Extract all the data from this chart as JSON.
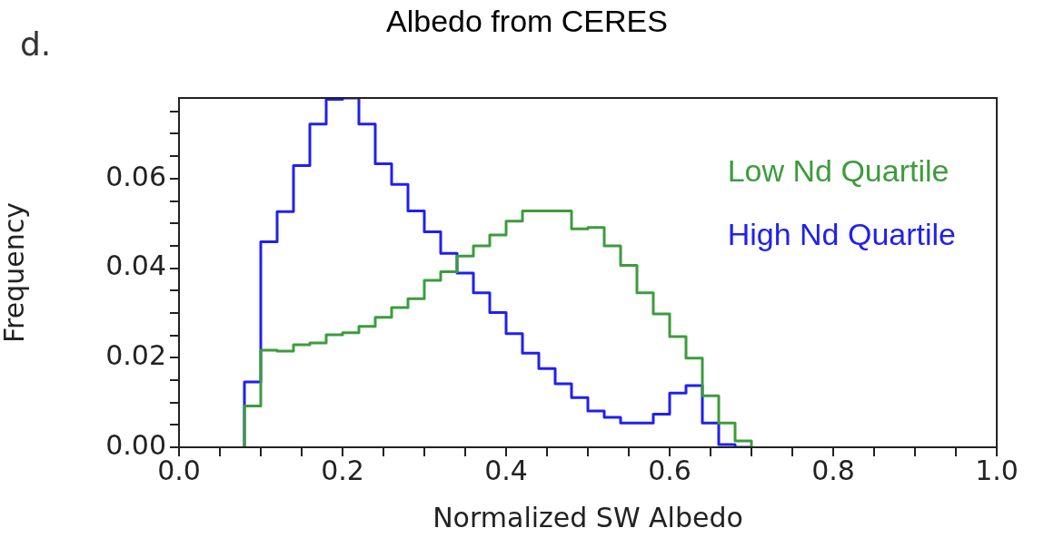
{
  "chart_data": {
    "type": "histogram",
    "title": "Albedo from CERES",
    "xlabel": "Normalized SW Albedo",
    "ylabel": "Frequency",
    "annotations": [
      "d."
    ],
    "bins": [
      0.08,
      0.1,
      0.12,
      0.14,
      0.16,
      0.18,
      0.2,
      0.22,
      0.24,
      0.26,
      0.28,
      0.3,
      0.32,
      0.34,
      0.36,
      0.38,
      0.4,
      0.42,
      0.44,
      0.46,
      0.48,
      0.5,
      0.52,
      0.54,
      0.56,
      0.58,
      0.6,
      0.62,
      0.64,
      0.66,
      0.68,
      0.7
    ],
    "series": [
      {
        "name": "Low Nd Quartile",
        "color": "#3c9c3c",
        "values": [
          0.0092,
          0.0217,
          0.0215,
          0.0229,
          0.0233,
          0.0251,
          0.0256,
          0.027,
          0.029,
          0.0312,
          0.0332,
          0.0373,
          0.0392,
          0.0427,
          0.045,
          0.0474,
          0.0505,
          0.0528,
          0.0528,
          0.0528,
          0.0488,
          0.0491,
          0.045,
          0.0406,
          0.0345,
          0.0298,
          0.0247,
          0.0199,
          0.0115,
          0.0054,
          0.0014
        ]
      },
      {
        "name": "High Nd Quartile",
        "color": "#2020f0",
        "values": [
          0.0146,
          0.0459,
          0.0526,
          0.0629,
          0.0722,
          0.0777,
          0.078,
          0.0722,
          0.0633,
          0.0587,
          0.0528,
          0.0481,
          0.0433,
          0.0389,
          0.0345,
          0.0301,
          0.0254,
          0.021,
          0.0176,
          0.0142,
          0.0111,
          0.0081,
          0.0067,
          0.0054,
          0.0054,
          0.0074,
          0.0121,
          0.0138,
          0.0054,
          0.0006,
          0
        ]
      }
    ],
    "xlim": [
      0,
      1
    ],
    "ylim": [
      0,
      0.078
    ],
    "xticks": [
      {
        "value": 0,
        "label": "0.0"
      },
      {
        "value": 0.05,
        "label": null
      },
      {
        "value": 0.1,
        "label": null
      },
      {
        "value": 0.15,
        "label": null
      },
      {
        "value": 0.2,
        "label": "0.2"
      },
      {
        "value": 0.25,
        "label": null
      },
      {
        "value": 0.3,
        "label": null
      },
      {
        "value": 0.35,
        "label": null
      },
      {
        "value": 0.4,
        "label": "0.4"
      },
      {
        "value": 0.45,
        "label": null
      },
      {
        "value": 0.5,
        "label": null
      },
      {
        "value": 0.55,
        "label": null
      },
      {
        "value": 0.6,
        "label": "0.6"
      },
      {
        "value": 0.65,
        "label": null
      },
      {
        "value": 0.7,
        "label": null
      },
      {
        "value": 0.75,
        "label": null
      },
      {
        "value": 0.8,
        "label": "0.8"
      },
      {
        "value": 0.85,
        "label": null
      },
      {
        "value": 0.9,
        "label": null
      },
      {
        "value": 0.95,
        "label": null
      },
      {
        "value": 1,
        "label": "1.0"
      }
    ],
    "yticks": [
      {
        "value": 0,
        "label": "0.00"
      },
      {
        "value": 0.005,
        "label": null
      },
      {
        "value": 0.01,
        "label": null
      },
      {
        "value": 0.015,
        "label": null
      },
      {
        "value": 0.02,
        "label": "0.02"
      },
      {
        "value": 0.025,
        "label": null
      },
      {
        "value": 0.03,
        "label": null
      },
      {
        "value": 0.035,
        "label": null
      },
      {
        "value": 0.04,
        "label": "0.04"
      },
      {
        "value": 0.045,
        "label": null
      },
      {
        "value": 0.05,
        "label": null
      },
      {
        "value": 0.055,
        "label": null
      },
      {
        "value": 0.06,
        "label": "0.06"
      },
      {
        "value": 0.065,
        "label": null
      },
      {
        "value": 0.07,
        "label": null
      },
      {
        "value": 0.075,
        "label": null
      }
    ],
    "grid": false,
    "legend": "top right",
    "line_style": "solid"
  }
}
